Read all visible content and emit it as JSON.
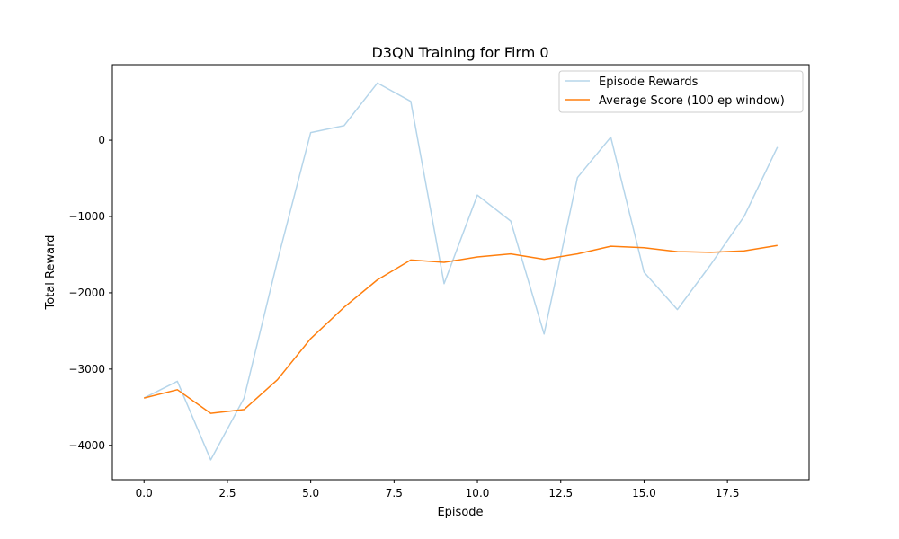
{
  "chart_data": {
    "type": "line",
    "title": "D3QN Training for Firm 0",
    "xlabel": "Episode",
    "ylabel": "Total Reward",
    "xlim": [
      -0.95,
      19.95
    ],
    "ylim": [
      -4450,
      990
    ],
    "xticks": [
      0,
      2.5,
      5,
      7.5,
      10,
      12.5,
      15,
      17.5
    ],
    "xtick_labels": [
      "0.0",
      "2.5",
      "5.0",
      "7.5",
      "10.0",
      "12.5",
      "15.0",
      "17.5"
    ],
    "yticks": [
      -4000,
      -3000,
      -2000,
      -1000,
      0
    ],
    "ytick_labels": [
      "−4000",
      "−3000",
      "−2000",
      "−1000",
      "0"
    ],
    "grid": false,
    "legend_position": "top-right",
    "x": [
      0,
      1,
      2,
      3,
      4,
      5,
      6,
      7,
      8,
      9,
      10,
      11,
      12,
      13,
      14,
      15,
      16,
      17,
      18,
      19
    ],
    "series": [
      {
        "name": "Episode Rewards",
        "color": "#b5d5ea",
        "values": [
          -3380,
          -3160,
          -4190,
          -3380,
          -1580,
          100,
          190,
          750,
          510,
          -1880,
          -720,
          -1060,
          -2540,
          -490,
          40,
          -1730,
          -2220,
          -1630,
          -1000,
          -90
        ]
      },
      {
        "name": "Average Score (100 ep window)",
        "color": "#ff7f0e",
        "values": [
          -3380,
          -3270,
          -3580,
          -3530,
          -3140,
          -2600,
          -2190,
          -1830,
          -1570,
          -1600,
          -1530,
          -1490,
          -1560,
          -1490,
          -1390,
          -1410,
          -1460,
          -1470,
          -1450,
          -1380
        ]
      }
    ]
  }
}
